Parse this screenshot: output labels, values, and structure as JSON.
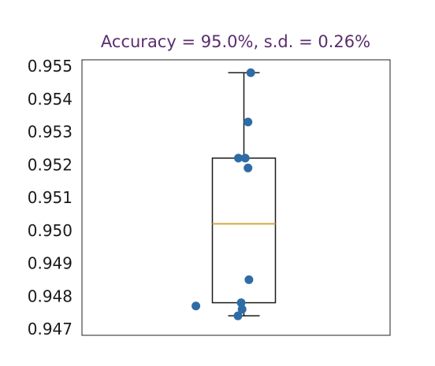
{
  "chart_data": {
    "type": "box",
    "title": "Accuracy = 95.0%, s.d. = 0.26%",
    "title_color": "#5b2d6e",
    "xlabel": "",
    "ylabel": "",
    "ylim": [
      0.947,
      0.955
    ],
    "yticks": [
      "0.955",
      "0.954",
      "0.953",
      "0.952",
      "0.951",
      "0.950",
      "0.949",
      "0.948",
      "0.947"
    ],
    "grid": false,
    "box": {
      "whisker_low": 0.9474,
      "q1": 0.9478,
      "median": 0.9502,
      "q3": 0.9522,
      "whisker_high": 0.9548,
      "box_edge_color": "#1a1a1a",
      "median_color": "#d9a441"
    },
    "points": {
      "color": "#2f6ca5",
      "values": [
        0.9548,
        0.9533,
        0.9522,
        0.9522,
        0.9519,
        0.9485,
        0.9478,
        0.9477,
        0.9476,
        0.9474
      ],
      "jitter": [
        0.15,
        0.09,
        -0.12,
        0.03,
        0.09,
        0.11,
        -0.06,
        -1.05,
        -0.04,
        -0.13
      ]
    }
  }
}
